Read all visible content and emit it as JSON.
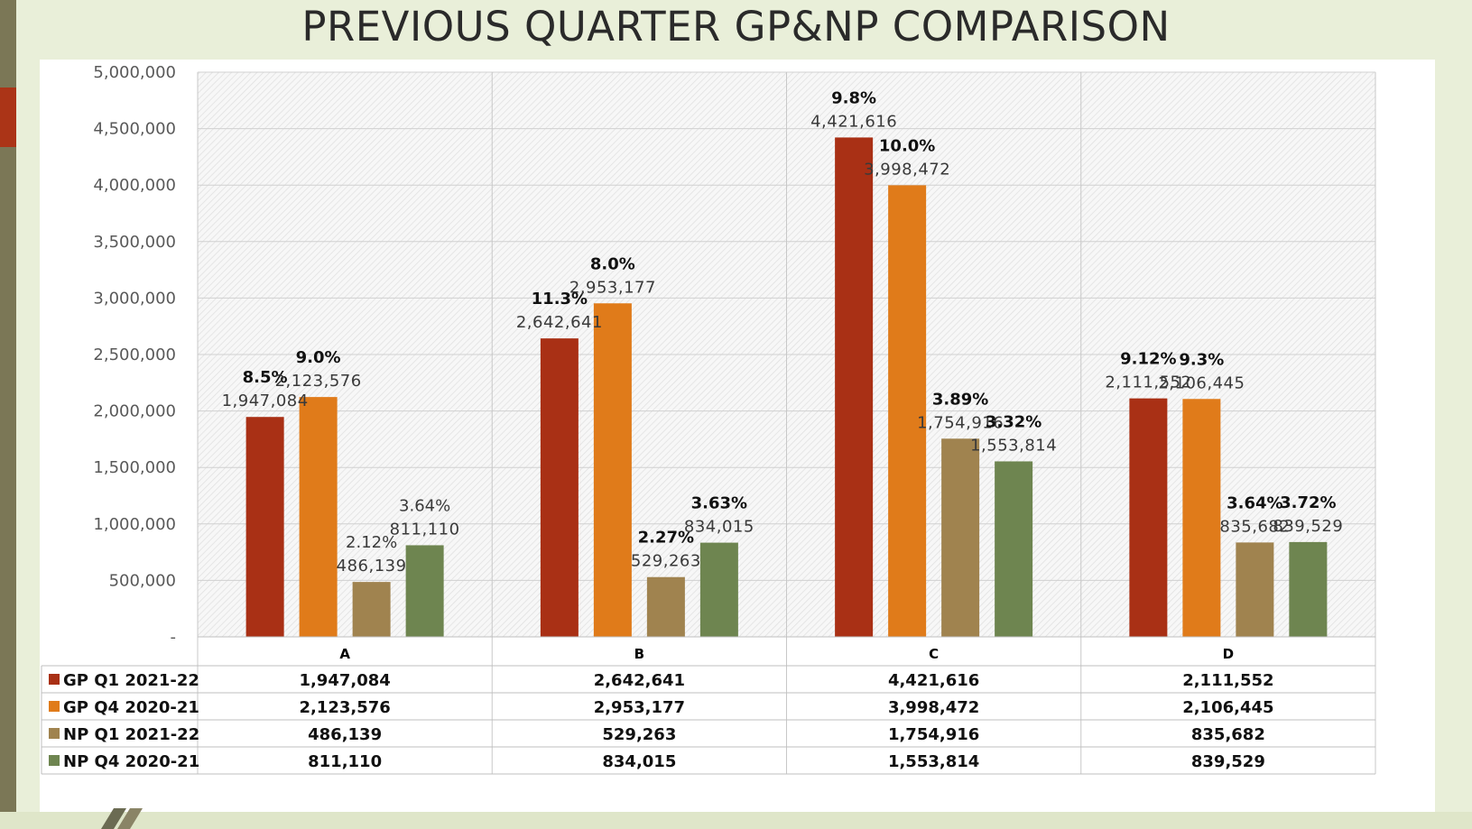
{
  "slide": {
    "title": "PREVIOUS QUARTER GP&NP COMPARISON"
  },
  "chart_data": {
    "type": "bar",
    "title": "PREVIOUS QUARTER GP&NP COMPARISON",
    "categories": [
      "A",
      "B",
      "C",
      "D"
    ],
    "ylim": [
      0,
      5000000
    ],
    "yticks": [
      0,
      500000,
      1000000,
      1500000,
      2000000,
      2500000,
      3000000,
      3500000,
      4000000,
      4500000,
      5000000
    ],
    "ytick_labels": [
      "-",
      "500,000",
      "1,000,000",
      "1,500,000",
      "2,000,000",
      "2,500,000",
      "3,000,000",
      "3,500,000",
      "4,000,000",
      "4,500,000",
      "5,000,000"
    ],
    "grid": true,
    "legend": "data-table",
    "series": [
      {
        "name": "GP  Q1 2021-22",
        "color": "#a93015",
        "values": [
          1947084,
          2642641,
          4421616,
          2111552
        ],
        "labels": [
          "1,947,084",
          "2,642,641",
          "4,421,616",
          "2,111,552"
        ],
        "pct": [
          "8.5%",
          "11.3%",
          "9.8%",
          "9.12%"
        ]
      },
      {
        "name": "GP  Q4 2020-21",
        "color": "#e07b1a",
        "values": [
          2123576,
          2953177,
          3998472,
          2106445
        ],
        "labels": [
          "2,123,576",
          "2,953,177",
          "3,998,472",
          "2,106,445"
        ],
        "pct": [
          "9.0%",
          "8.0%",
          "10.0%",
          "9.3%"
        ]
      },
      {
        "name": "NP  Q1 2021-22",
        "color": "#a0834f",
        "values": [
          486139,
          529263,
          1754916,
          835682
        ],
        "labels": [
          "486,139",
          "529,263",
          "1,754,916",
          "835,682"
        ],
        "pct": [
          "2.12%",
          "2.27%",
          "3.89%",
          "3.64%"
        ]
      },
      {
        "name": "NP  Q4 2020-21",
        "color": "#6e8550",
        "values": [
          811110,
          834015,
          1553814,
          839529
        ],
        "labels": [
          "811,110",
          "834,015",
          "1,553,814",
          "839,529"
        ],
        "pct": [
          "3.64%",
          "3.63%",
          "3.32%",
          "3.72%"
        ]
      }
    ]
  }
}
